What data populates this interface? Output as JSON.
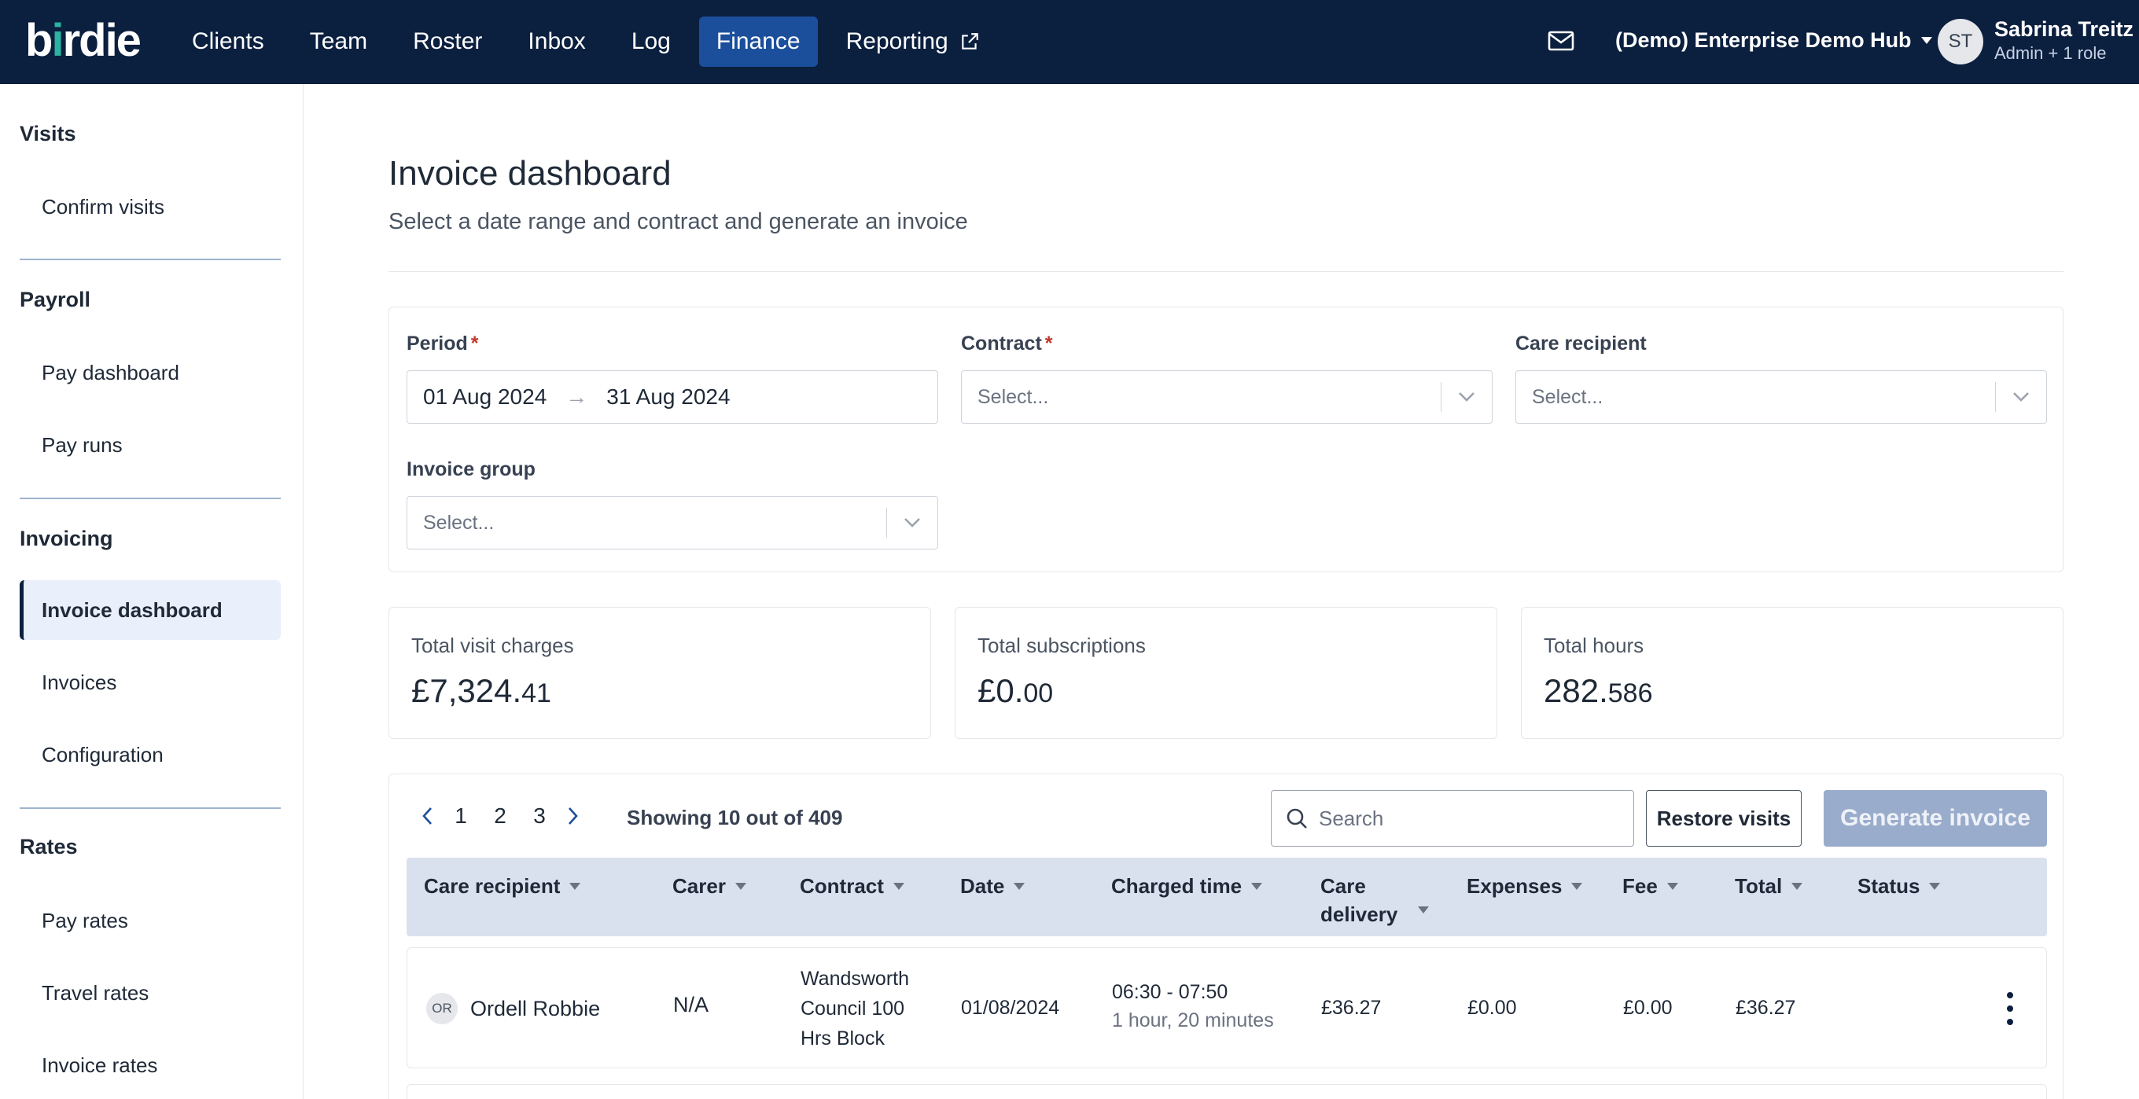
{
  "topbar": {
    "logo": "birdie",
    "nav": [
      "Clients",
      "Team",
      "Roster",
      "Inbox",
      "Log",
      "Finance",
      "Reporting"
    ],
    "active_nav": "Finance",
    "hub": "(Demo) Enterprise Demo Hub",
    "user_initials": "ST",
    "user_name": "Sabrina Treitz",
    "user_role": "Admin + 1 role"
  },
  "sidebar": {
    "sections": [
      {
        "title": "Visits",
        "items": [
          "Confirm visits"
        ]
      },
      {
        "title": "Payroll",
        "items": [
          "Pay dashboard",
          "Pay runs"
        ]
      },
      {
        "title": "Invoicing",
        "items": [
          "Invoice dashboard",
          "Invoices",
          "Configuration"
        ]
      },
      {
        "title": "Rates",
        "items": [
          "Pay rates",
          "Travel rates",
          "Invoice rates"
        ]
      }
    ],
    "active_item": "Invoice dashboard"
  },
  "page": {
    "title": "Invoice dashboard",
    "subtitle": "Select a date range and contract and generate an invoice"
  },
  "filters": {
    "period_label": "Period",
    "required_mark": "*",
    "period_start": "01 Aug 2024",
    "period_arrow": "→",
    "period_end": "31 Aug 2024",
    "contract_label": "Contract",
    "contract_placeholder": "Select...",
    "care_recipient_label": "Care recipient",
    "care_recipient_placeholder": "Select...",
    "invoice_group_label": "Invoice group",
    "invoice_group_placeholder": "Select..."
  },
  "stats": [
    {
      "label": "Total visit charges",
      "main": "£7,324.",
      "fraction": "41"
    },
    {
      "label": "Total subscriptions",
      "main": "£0.",
      "fraction": "00"
    },
    {
      "label": "Total hours",
      "main": "282.",
      "fraction": "586"
    }
  ],
  "table": {
    "pages": [
      "1",
      "2",
      "3"
    ],
    "showing": "Showing 10 out of 409",
    "search_placeholder": "Search",
    "restore_label": "Restore visits",
    "generate_label": "Generate invoice",
    "columns": [
      "Care recipient",
      "Carer",
      "Contract",
      "Date",
      "Charged time",
      "Care delivery",
      "Expenses",
      "Fee",
      "Total",
      "Status"
    ],
    "rows": [
      {
        "initials": "OR",
        "care_recipient": "Ordell Robbie",
        "carer": "N/A",
        "contract": "Wandsworth Council 100 Hrs Block",
        "date": "01/08/2024",
        "charged_time": "06:30 - 07:50",
        "charged_duration": "1 hour, 20 minutes",
        "care_delivery": "£36.27",
        "expenses": "£0.00",
        "fee": "£0.00",
        "total": "£36.27",
        "status": ""
      }
    ]
  },
  "colors": {
    "topbar": "#0b1f3f",
    "active_nav": "#1b4f9c",
    "table_header": "#d9e1ee",
    "generate_disabled": "#9aaccb"
  }
}
